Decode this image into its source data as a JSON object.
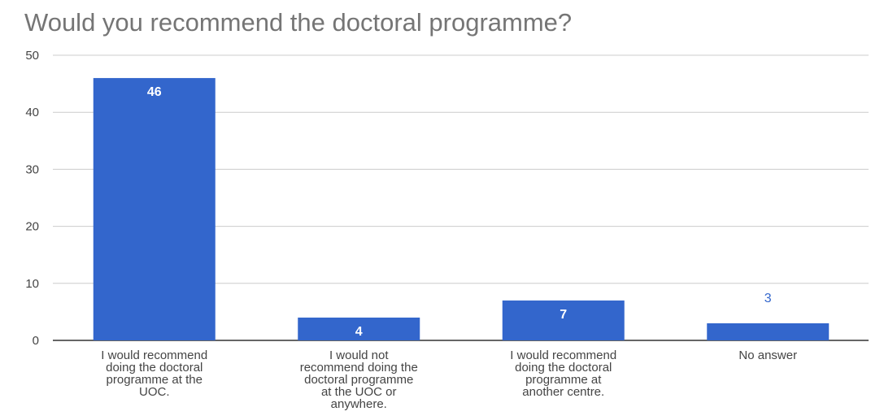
{
  "chart_data": {
    "type": "bar",
    "title": "Would you recommend the doctoral programme?",
    "xlabel": "",
    "ylabel": "",
    "categories": [
      "I would recommend doing the doctoral programme at the UOC.",
      "I would not recommend doing the doctoral programme at the UOC or anywhere.",
      "I would recommend doing the doctoral programme at another centre.",
      "No answer"
    ],
    "category_lines": [
      [
        "I would recommend",
        "doing the doctoral",
        "programme at the",
        "UOC."
      ],
      [
        "I would not",
        "recommend doing the",
        "doctoral programme",
        "at the UOC or",
        "anywhere."
      ],
      [
        "I would recommend",
        "doing the doctoral",
        "programme at",
        "another centre."
      ],
      [
        "No answer"
      ]
    ],
    "values": [
      46,
      4,
      7,
      3
    ],
    "ylim": [
      0,
      50
    ],
    "yticks": [
      0,
      10,
      20,
      30,
      40,
      50
    ],
    "grid": true,
    "legend": "none",
    "colors": {
      "bar": "#3366cc",
      "grid": "#cccccc",
      "baseline": "#333333",
      "title": "#757575",
      "label_inside": "#ffffff",
      "label_outside": "#3366cc"
    }
  }
}
